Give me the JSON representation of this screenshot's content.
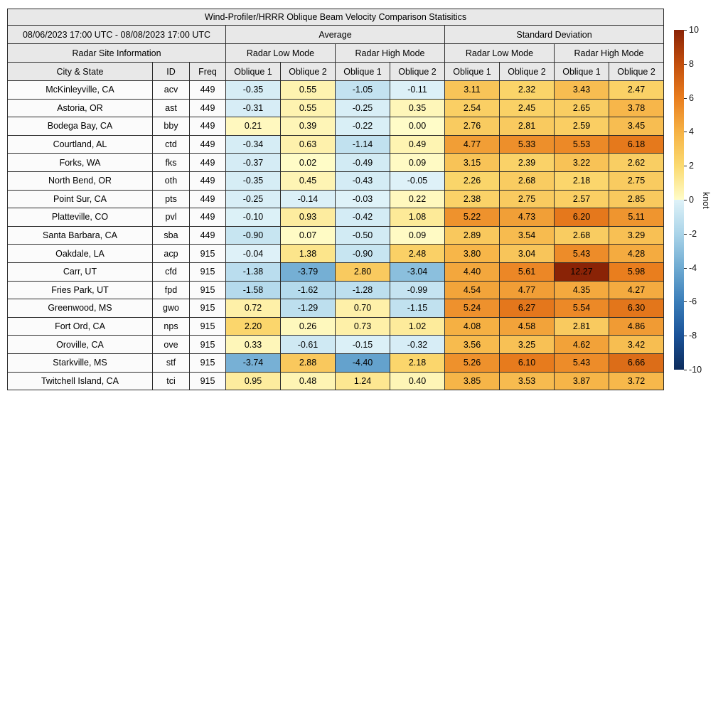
{
  "title": "Wind-Profiler/HRRR Oblique Beam Velocity Comparison Statisitics",
  "header": {
    "date_range": "08/06/2023 17:00 UTC - 08/08/2023 17:00 UTC",
    "average_label": "Average",
    "std_label": "Standard Deviation",
    "site_info_label": "Radar Site Information",
    "mode_labels": [
      "Radar Low Mode",
      "Radar High Mode",
      "Radar Low Mode",
      "Radar High Mode"
    ],
    "col_labels": [
      "City & State",
      "ID",
      "Freq",
      "Oblique 1",
      "Oblique 2",
      "Oblique 1",
      "Oblique 2",
      "Oblique 1",
      "Oblique 2",
      "Oblique 1",
      "Oblique 2"
    ]
  },
  "chart_data": {
    "type": "heatmap",
    "title": "Wind-Profiler/HRRR Oblique Beam Velocity Comparison Statisitics",
    "unit": "knot",
    "value_range": [
      -10,
      10
    ],
    "value_columns": [
      "Average Radar Low Mode Oblique 1",
      "Average Radar Low Mode Oblique 2",
      "Average Radar High Mode Oblique 1",
      "Average Radar High Mode Oblique 2",
      "Std Radar Low Mode Oblique 1",
      "Std Radar Low Mode Oblique 2",
      "Std Radar High Mode Oblique 1",
      "Std Radar High Mode Oblique 2"
    ],
    "rows": [
      {
        "city": "McKinleyville, CA",
        "id": "acv",
        "freq": "449",
        "values": [
          "-0.35",
          "0.55",
          "-1.05",
          "-0.11",
          "3.11",
          "2.32",
          "3.43",
          "2.47"
        ]
      },
      {
        "city": "Astoria, OR",
        "id": "ast",
        "freq": "449",
        "values": [
          "-0.31",
          "0.55",
          "-0.25",
          "0.35",
          "2.54",
          "2.45",
          "2.65",
          "3.78"
        ]
      },
      {
        "city": "Bodega Bay, CA",
        "id": "bby",
        "freq": "449",
        "values": [
          "0.21",
          "0.39",
          "-0.22",
          "0.00",
          "2.76",
          "2.81",
          "2.59",
          "3.45"
        ]
      },
      {
        "city": "Courtland, AL",
        "id": "ctd",
        "freq": "449",
        "values": [
          "-0.34",
          "0.63",
          "-1.14",
          "0.49",
          "4.77",
          "5.33",
          "5.53",
          "6.18"
        ]
      },
      {
        "city": "Forks, WA",
        "id": "fks",
        "freq": "449",
        "values": [
          "-0.37",
          "0.02",
          "-0.49",
          "0.09",
          "3.15",
          "2.39",
          "3.22",
          "2.62"
        ]
      },
      {
        "city": "North Bend, OR",
        "id": "oth",
        "freq": "449",
        "values": [
          "-0.35",
          "0.45",
          "-0.43",
          "-0.05",
          "2.26",
          "2.68",
          "2.18",
          "2.75"
        ]
      },
      {
        "city": "Point Sur, CA",
        "id": "pts",
        "freq": "449",
        "values": [
          "-0.25",
          "-0.14",
          "-0.03",
          "0.22",
          "2.38",
          "2.75",
          "2.57",
          "2.85"
        ]
      },
      {
        "city": "Platteville, CO",
        "id": "pvl",
        "freq": "449",
        "values": [
          "-0.10",
          "0.93",
          "-0.42",
          "1.08",
          "5.22",
          "4.73",
          "6.20",
          "5.11"
        ]
      },
      {
        "city": "Santa Barbara, CA",
        "id": "sba",
        "freq": "449",
        "values": [
          "-0.90",
          "0.07",
          "-0.50",
          "0.09",
          "2.89",
          "3.54",
          "2.68",
          "3.29"
        ]
      },
      {
        "city": "Oakdale, LA",
        "id": "acp",
        "freq": "915",
        "values": [
          "-0.04",
          "1.38",
          "-0.90",
          "2.48",
          "3.80",
          "3.04",
          "5.43",
          "4.28"
        ]
      },
      {
        "city": "Carr, UT",
        "id": "cfd",
        "freq": "915",
        "values": [
          "-1.38",
          "-3.79",
          "2.80",
          "-3.04",
          "4.40",
          "5.61",
          "12.27",
          "5.98"
        ]
      },
      {
        "city": "Fries Park, UT",
        "id": "fpd",
        "freq": "915",
        "values": [
          "-1.58",
          "-1.62",
          "-1.28",
          "-0.99",
          "4.54",
          "4.77",
          "4.35",
          "4.27"
        ]
      },
      {
        "city": "Greenwood, MS",
        "id": "gwo",
        "freq": "915",
        "values": [
          "0.72",
          "-1.29",
          "0.70",
          "-1.15",
          "5.24",
          "6.27",
          "5.54",
          "6.30"
        ]
      },
      {
        "city": "Fort Ord, CA",
        "id": "nps",
        "freq": "915",
        "values": [
          "2.20",
          "0.26",
          "0.73",
          "1.02",
          "4.08",
          "4.58",
          "2.81",
          "4.86"
        ]
      },
      {
        "city": "Oroville, CA",
        "id": "ove",
        "freq": "915",
        "values": [
          "0.33",
          "-0.61",
          "-0.15",
          "-0.32",
          "3.56",
          "3.25",
          "4.62",
          "3.42"
        ]
      },
      {
        "city": "Starkville, MS",
        "id": "stf",
        "freq": "915",
        "values": [
          "-3.74",
          "2.88",
          "-4.40",
          "2.18",
          "5.26",
          "6.10",
          "5.43",
          "6.66"
        ]
      },
      {
        "city": "Twitchell Island, CA",
        "id": "tci",
        "freq": "915",
        "values": [
          "0.95",
          "0.48",
          "1.24",
          "0.40",
          "3.85",
          "3.53",
          "3.87",
          "3.72"
        ]
      }
    ]
  },
  "colorbar": {
    "label": "knot",
    "ticks": [
      10,
      8,
      6,
      4,
      2,
      0,
      -2,
      -4,
      -6,
      -8,
      -10
    ],
    "positive_stops": [
      [
        0,
        "#fffcc8"
      ],
      [
        2,
        "#fbda70"
      ],
      [
        4,
        "#f6b245"
      ],
      [
        6,
        "#e97d1e"
      ],
      [
        8,
        "#c24e0d"
      ],
      [
        10,
        "#8a2306"
      ]
    ],
    "negative_stops": [
      [
        0,
        "#dff2f8"
      ],
      [
        2,
        "#aad4e9"
      ],
      [
        4,
        "#6fabd2"
      ],
      [
        6,
        "#3a7db9"
      ],
      [
        8,
        "#1a5298"
      ],
      [
        10,
        "#0d2c5c"
      ]
    ]
  }
}
